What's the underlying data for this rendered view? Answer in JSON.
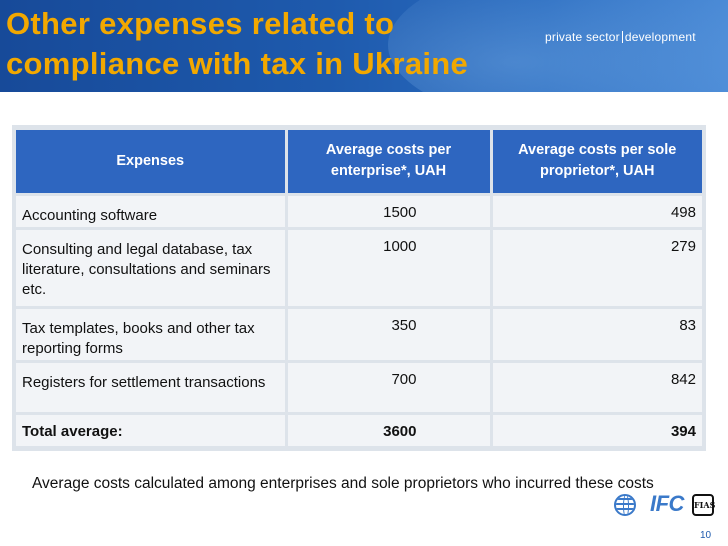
{
  "slide": {
    "title": "Other expenses related to compliance with tax in Ukraine",
    "brand_left": "private sector",
    "brand_right": "development",
    "page_number": "10"
  },
  "table": {
    "headers": [
      "Expenses",
      "Average costs per enterprise*, UAH",
      "Average costs per sole proprietor*, UAH"
    ],
    "rows": [
      {
        "expense": "Accounting software",
        "enterprise": "1500",
        "proprietor": "498"
      },
      {
        "expense": "Consulting and legal database, tax literature, consultations and seminars etc.",
        "enterprise": "1000",
        "proprietor": "279"
      },
      {
        "expense": "Tax templates, books and other tax reporting forms",
        "enterprise": "350",
        "proprietor": "83"
      },
      {
        "expense": "Registers for settlement transactions",
        "enterprise": "700",
        "proprietor": "842"
      }
    ],
    "total": {
      "label": "Total average:",
      "enterprise": "3600",
      "proprietor": "394"
    }
  },
  "footnote": "Average costs calculated among enterprises and sole proprietors who incurred these costs",
  "logos": {
    "world_bank_icon": "globe-icon",
    "ifc_text": "IFC",
    "seal_icon": "fias-seal-icon",
    "seal_text": "FIAS"
  },
  "colors": {
    "title": "#f2a800",
    "header_band": "#1e5aad",
    "table_header": "#2e66c0",
    "table_cell": "#f2f4f7"
  }
}
